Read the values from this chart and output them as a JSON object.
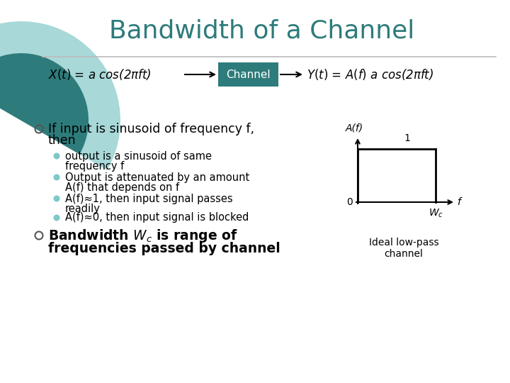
{
  "title": "Bandwidth of a Channel",
  "title_color": "#2E7B7B",
  "title_fontsize": 26,
  "bg_color": "#FFFFFF",
  "channel_box_color": "#2E7B7B",
  "channel_box_text": "Channel",
  "channel_box_text_color": "#FFFFFF",
  "bullet_color": "#888888",
  "sub_bullet_color": "#7EC8C8",
  "text_color": "#000000",
  "circle_outer_color": "#A8D8D8",
  "circle_inner_color": "#2E7B7B",
  "graph_ylabel": "A(f)",
  "graph_xlabel": "f",
  "ideal_label": "Ideal low-pass\nchannel",
  "sub_bullets_line1": [
    "output is a sinusoid of same",
    "Output is attenuated by an amount",
    "A(f)≈1, then input signal passes",
    "A(f)≈0, then input signal is blocked"
  ],
  "sub_bullets_line2": [
    "frequency f",
    "A(f) that depends on f",
    "readily",
    ""
  ]
}
